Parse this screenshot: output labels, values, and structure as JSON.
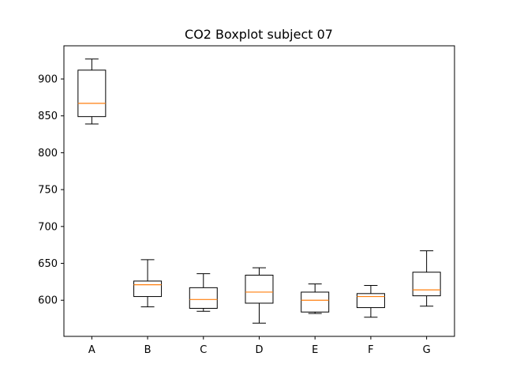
{
  "chart_data": {
    "type": "boxplot",
    "title": "CO2 Boxplot subject 07",
    "xlabel": "",
    "ylabel": "",
    "ylim": [
      551,
      945
    ],
    "yticks": [
      600,
      650,
      700,
      750,
      800,
      850,
      900
    ],
    "grid": false,
    "categories": [
      "A",
      "B",
      "C",
      "D",
      "E",
      "F",
      "G"
    ],
    "boxes": [
      {
        "label": "A",
        "whisker_low": 839,
        "q1": 849,
        "median": 867,
        "q3": 912,
        "whisker_high": 927
      },
      {
        "label": "B",
        "whisker_low": 591,
        "q1": 605,
        "median": 621,
        "q3": 626,
        "whisker_high": 655
      },
      {
        "label": "C",
        "whisker_low": 585,
        "q1": 589,
        "median": 601,
        "q3": 617,
        "whisker_high": 636
      },
      {
        "label": "D",
        "whisker_low": 569,
        "q1": 596,
        "median": 611,
        "q3": 634,
        "whisker_high": 644
      },
      {
        "label": "E",
        "whisker_low": 582,
        "q1": 584,
        "median": 600,
        "q3": 611,
        "whisker_high": 622
      },
      {
        "label": "F",
        "whisker_low": 577,
        "q1": 590,
        "median": 605,
        "q3": 609,
        "whisker_high": 620
      },
      {
        "label": "G",
        "whisker_low": 592,
        "q1": 606,
        "median": 614,
        "q3": 638,
        "whisker_high": 667
      }
    ],
    "colors": {
      "box": "#000000",
      "median": "#ff7f0e"
    }
  }
}
